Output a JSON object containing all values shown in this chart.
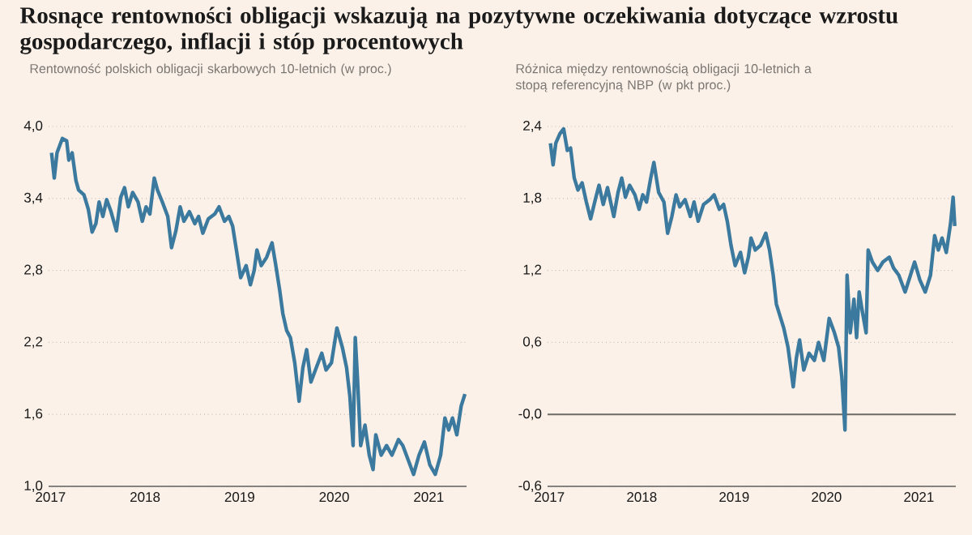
{
  "chart_data": [
    {
      "type": "line",
      "title": "Rosnące rentowności obligacji wskazują na pozytywne oczekiwania dotyczące wzrostu gospodarczego, inflacji i stóp procentowych",
      "subtitle": "Rentowność polskich obligacji skarbowych 10-letnich (w proc.)",
      "xlim": [
        2016.98,
        2021.4
      ],
      "xticks": [
        2017,
        2018,
        2019,
        2020,
        2021
      ],
      "ylim": [
        1.0,
        4.0
      ],
      "yticks": [
        {
          "value": 1.0,
          "label": "1,0"
        },
        {
          "value": 1.6,
          "label": "1,6"
        },
        {
          "value": 2.2,
          "label": "2,2"
        },
        {
          "value": 2.8,
          "label": "2,8"
        },
        {
          "value": 3.4,
          "label": "3,4"
        },
        {
          "value": 4.0,
          "label": "4,0"
        }
      ],
      "grid": "y",
      "series": [
        {
          "color": "#3b7a9e",
          "x": [
            2017.011,
            2017.04,
            2017.069,
            2017.097,
            2017.126,
            2017.171,
            2017.194,
            2017.229,
            2017.269,
            2017.297,
            2017.354,
            2017.4,
            2017.44,
            2017.48,
            2017.514,
            2017.554,
            2017.594,
            2017.64,
            2017.697,
            2017.743,
            2017.783,
            2017.823,
            2017.869,
            2017.926,
            2017.971,
            2018.011,
            2018.051,
            2018.097,
            2018.131,
            2018.183,
            2018.24,
            2018.28,
            2018.326,
            2018.371,
            2018.411,
            2018.469,
            2018.526,
            2018.566,
            2018.611,
            2018.669,
            2018.737,
            2018.783,
            2018.84,
            2018.886,
            2018.926,
            2018.966,
            2019.011,
            2019.069,
            2019.114,
            2019.154,
            2019.183,
            2019.229,
            2019.286,
            2019.343,
            2019.383,
            2019.423,
            2019.457,
            2019.497,
            2019.537,
            2019.583,
            2019.629,
            2019.669,
            2019.709,
            2019.754,
            2019.811,
            2019.869,
            2019.914,
            2019.971,
            2020.029,
            2020.086,
            2020.131,
            2020.166,
            2020.2,
            2020.223,
            2020.246,
            2020.28,
            2020.326,
            2020.371,
            2020.411,
            2020.44,
            2020.497,
            2020.554,
            2020.611,
            2020.68,
            2020.726,
            2020.783,
            2020.84,
            2020.897,
            2020.954,
            2021.011,
            2021.069,
            2021.126,
            2021.171,
            2021.211,
            2021.251,
            2021.297,
            2021.343,
            2021.383
          ],
          "values": [
            3.78,
            3.57,
            3.78,
            3.84,
            3.9,
            3.88,
            3.72,
            3.78,
            3.55,
            3.47,
            3.43,
            3.31,
            3.12,
            3.19,
            3.37,
            3.25,
            3.39,
            3.29,
            3.13,
            3.41,
            3.49,
            3.33,
            3.45,
            3.37,
            3.21,
            3.33,
            3.27,
            3.57,
            3.47,
            3.37,
            3.25,
            2.99,
            3.13,
            3.33,
            3.21,
            3.29,
            3.19,
            3.25,
            3.11,
            3.23,
            3.27,
            3.33,
            3.21,
            3.25,
            3.17,
            2.97,
            2.74,
            2.84,
            2.68,
            2.8,
            2.97,
            2.84,
            2.91,
            3.03,
            2.84,
            2.64,
            2.44,
            2.3,
            2.24,
            2.03,
            1.71,
            1.99,
            2.14,
            1.87,
            1.99,
            2.11,
            1.97,
            2.03,
            2.32,
            2.16,
            1.99,
            1.75,
            1.34,
            2.24,
            1.91,
            1.34,
            1.51,
            1.26,
            1.14,
            1.43,
            1.26,
            1.34,
            1.26,
            1.39,
            1.34,
            1.22,
            1.1,
            1.26,
            1.37,
            1.18,
            1.1,
            1.26,
            1.57,
            1.47,
            1.57,
            1.43,
            1.67,
            1.77
          ]
        }
      ]
    },
    {
      "type": "line",
      "subtitle": "Różnica między rentownością obligacji 10-letnich a stopą referencyjną NBP (w pkt proc.)",
      "xlim": [
        2016.98,
        2021.4
      ],
      "xticks": [
        2017,
        2018,
        2019,
        2020,
        2021
      ],
      "ylim": [
        -0.6,
        2.4
      ],
      "yticks": [
        {
          "value": -0.6,
          "label": "-0,6"
        },
        {
          "value": 0,
          "label": "-0,0"
        },
        {
          "value": 0.6,
          "label": "0,6"
        },
        {
          "value": 1.2,
          "label": "1,2"
        },
        {
          "value": 1.8,
          "label": "1,8"
        },
        {
          "value": 2.4,
          "label": "2,4"
        }
      ],
      "grid": "y",
      "ref_lines": [
        {
          "axis": "y",
          "value": 0,
          "color": "#6e6a66"
        }
      ],
      "series": [
        {
          "color": "#3b7a9e",
          "x": [
            2017.011,
            2017.04,
            2017.069,
            2017.114,
            2017.154,
            2017.194,
            2017.229,
            2017.269,
            2017.309,
            2017.354,
            2017.4,
            2017.446,
            2017.497,
            2017.537,
            2017.583,
            2017.629,
            2017.697,
            2017.743,
            2017.783,
            2017.823,
            2017.869,
            2017.926,
            2017.971,
            2018.011,
            2018.051,
            2018.097,
            2018.131,
            2018.183,
            2018.24,
            2018.28,
            2018.326,
            2018.371,
            2018.411,
            2018.469,
            2018.526,
            2018.566,
            2018.611,
            2018.669,
            2018.737,
            2018.783,
            2018.84,
            2018.886,
            2018.926,
            2018.966,
            2019.011,
            2019.069,
            2019.114,
            2019.154,
            2019.183,
            2019.229,
            2019.286,
            2019.343,
            2019.383,
            2019.423,
            2019.457,
            2019.497,
            2019.537,
            2019.583,
            2019.64,
            2019.674,
            2019.709,
            2019.754,
            2019.811,
            2019.869,
            2019.914,
            2019.971,
            2020.029,
            2020.086,
            2020.131,
            2020.166,
            2020.2,
            2020.223,
            2020.257,
            2020.297,
            2020.326,
            2020.354,
            2020.383,
            2020.429,
            2020.451,
            2020.497,
            2020.554,
            2020.611,
            2020.68,
            2020.726,
            2020.783,
            2020.851,
            2020.909,
            2020.954,
            2021.011,
            2021.069,
            2021.126,
            2021.171,
            2021.211,
            2021.251,
            2021.297,
            2021.343,
            2021.371,
            2021.389
          ],
          "values": [
            2.26,
            2.08,
            2.26,
            2.34,
            2.38,
            2.2,
            2.22,
            1.97,
            1.87,
            1.93,
            1.77,
            1.63,
            1.79,
            1.91,
            1.75,
            1.89,
            1.65,
            1.85,
            1.97,
            1.81,
            1.91,
            1.83,
            1.71,
            1.83,
            1.77,
            1.97,
            2.1,
            1.85,
            1.77,
            1.51,
            1.65,
            1.83,
            1.73,
            1.79,
            1.65,
            1.77,
            1.61,
            1.75,
            1.79,
            1.83,
            1.71,
            1.75,
            1.61,
            1.41,
            1.24,
            1.35,
            1.18,
            1.31,
            1.47,
            1.37,
            1.41,
            1.51,
            1.37,
            1.16,
            0.92,
            0.82,
            0.72,
            0.56,
            0.23,
            0.47,
            0.62,
            0.37,
            0.51,
            0.45,
            0.6,
            0.45,
            0.8,
            0.68,
            0.56,
            0.31,
            -0.13,
            1.16,
            0.68,
            0.96,
            0.64,
            1.02,
            0.88,
            0.68,
            1.37,
            1.27,
            1.2,
            1.27,
            1.31,
            1.22,
            1.16,
            1.02,
            1.16,
            1.27,
            1.12,
            1.02,
            1.16,
            1.49,
            1.37,
            1.47,
            1.35,
            1.59,
            1.81,
            1.57
          ]
        }
      ]
    }
  ]
}
